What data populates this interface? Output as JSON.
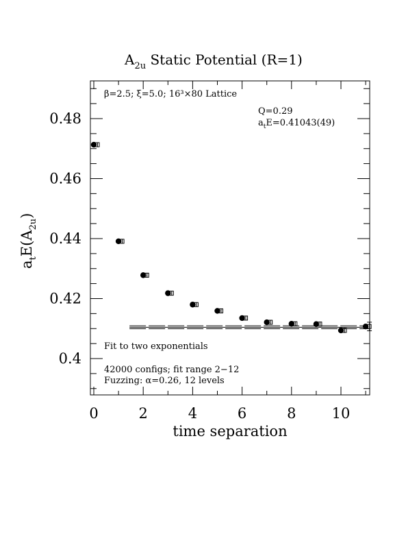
{
  "chart_data": {
    "type": "scatter",
    "title_main": "A",
    "title_sub": "2u",
    "title_rest": " Static Potential (R=1)",
    "xlabel": "time separation",
    "ylabel_main": "a",
    "ylabel_sub1": "t",
    "ylabel_mid": "E(A",
    "ylabel_sub2": "2u",
    "ylabel_end": ")",
    "xlim": [
      0,
      11
    ],
    "ylim": [
      0.3875,
      0.4925
    ],
    "x_ticks": [
      0,
      2,
      4,
      6,
      8,
      10
    ],
    "y_ticks": [
      0.4,
      0.42,
      0.44,
      0.46,
      0.48
    ],
    "x_tick_labels": [
      "0",
      "2",
      "4",
      "6",
      "8",
      "10"
    ],
    "y_tick_labels": [
      "0.4",
      "0.42",
      "0.44",
      "0.46",
      "0.48"
    ],
    "grid": false,
    "series": [
      {
        "x": [
          0,
          1,
          2,
          3,
          4,
          5,
          6,
          7,
          8,
          9,
          10,
          11
        ],
        "y": [
          0.4713,
          0.4391,
          0.4278,
          0.4218,
          0.418,
          0.4159,
          0.4135,
          0.4121,
          0.4116,
          0.4115,
          0.4094,
          0.4107
        ],
        "err": [
          0.0001,
          0.0001,
          0.0001,
          0.0001,
          0.0001,
          0.0001,
          0.0001,
          0.0001,
          0.0002,
          0.0003,
          0.0006,
          0.0012
        ]
      }
    ],
    "fit": {
      "x_range": [
        1.5,
        11
      ],
      "value": 0.41043,
      "error": 0.00049
    },
    "annotations": {
      "lattice": "β=2.5; ξ=5.0; 16³×80 Lattice",
      "q": "Q=0.29",
      "fit_result_main": "a",
      "fit_result_sub": "t",
      "fit_result_rest": "E=0.41043(49)",
      "fit_type": "Fit to two exponentials",
      "configs": "42000 configs; fit range 2−12",
      "fuzzing": "Fuzzing: α=0.26, 12 levels"
    }
  }
}
